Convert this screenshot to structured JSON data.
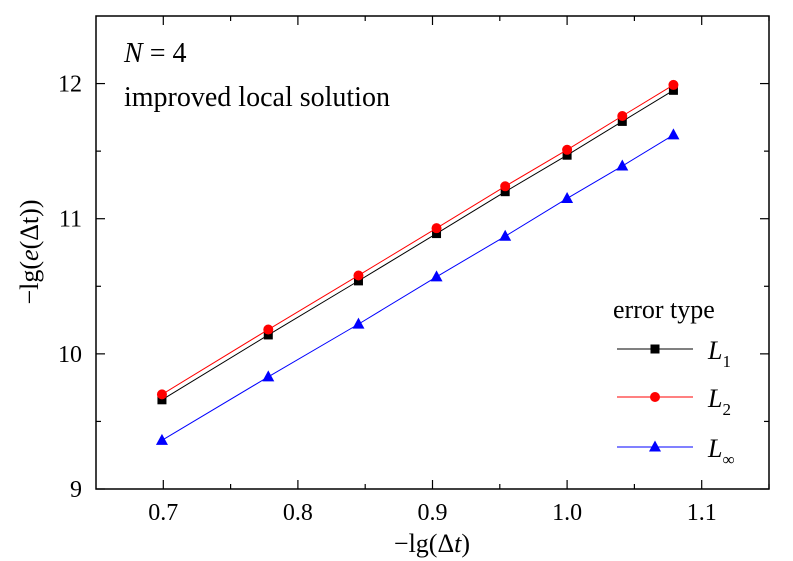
{
  "chart_data": {
    "type": "line",
    "annotations": [
      {
        "prefix": "",
        "italic": "N",
        "suffix": " = 4"
      },
      {
        "prefix": "improved local solution",
        "italic": "",
        "suffix": ""
      }
    ],
    "xlabel": {
      "prefix": "−lg(Δ",
      "italic": "t",
      "suffix": ")"
    },
    "ylabel": {
      "prefix": "−lg(",
      "italic": "e",
      "suffix": "(Δt))"
    },
    "xlim": [
      0.65,
      1.15
    ],
    "ylim": [
      9.0,
      12.5
    ],
    "xticks": [
      0.7,
      0.8,
      0.9,
      1.0,
      1.1
    ],
    "xtick_labels": [
      "0.7",
      "0.8",
      "0.9",
      "1.0",
      "1.1"
    ],
    "yticks": [
      9,
      10,
      11,
      12
    ],
    "ytick_labels": [
      "9",
      "10",
      "11",
      "12"
    ],
    "x": [
      0.699,
      0.778,
      0.845,
      0.903,
      0.954,
      1.0,
      1.041,
      1.079
    ],
    "legend": {
      "title": "error type",
      "position": "lower-right"
    },
    "series": [
      {
        "name_main": "L",
        "name_sub": "1",
        "color": "#000000",
        "marker": "square",
        "values": [
          9.66,
          10.14,
          10.54,
          10.89,
          11.2,
          11.47,
          11.72,
          11.95
        ]
      },
      {
        "name_main": "L",
        "name_sub": "2",
        "color": "#ff0000",
        "marker": "circle",
        "values": [
          9.7,
          10.18,
          10.58,
          10.93,
          11.24,
          11.51,
          11.76,
          11.99
        ]
      },
      {
        "name_main": "L",
        "name_sub": "∞",
        "color": "#0000ff",
        "marker": "triangle",
        "values": [
          9.36,
          9.83,
          10.22,
          10.57,
          10.87,
          11.15,
          11.39,
          11.62
        ]
      }
    ]
  }
}
